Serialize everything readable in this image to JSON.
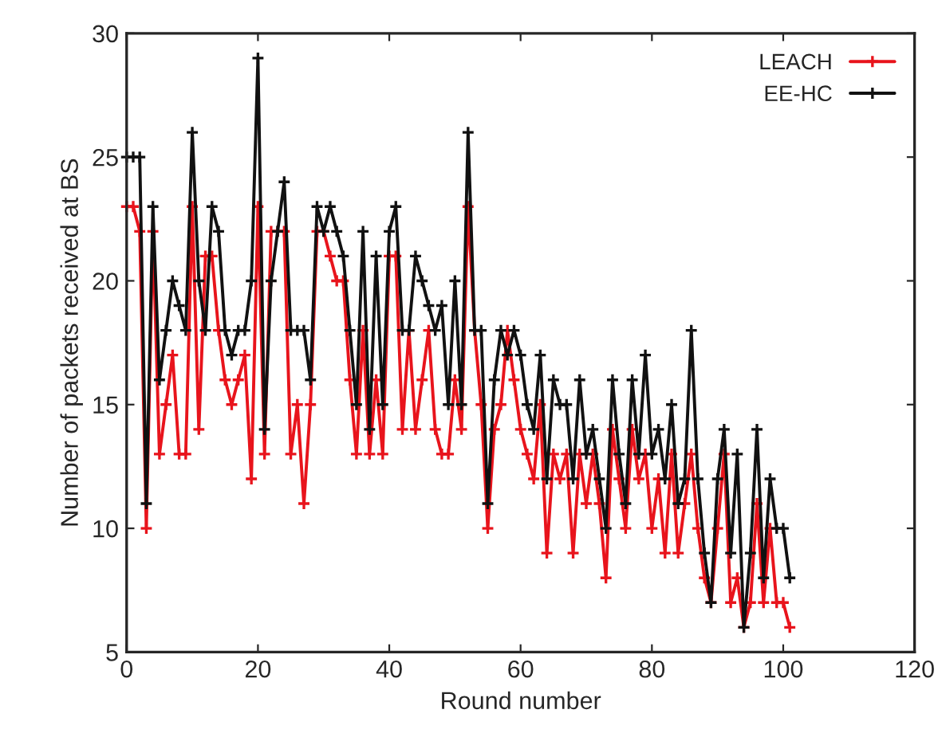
{
  "chart_data": {
    "type": "line",
    "xlabel": "Round number",
    "ylabel": "Number of packets received at BS",
    "x": [
      0,
      1,
      2,
      3,
      4,
      5,
      6,
      7,
      8,
      9,
      10,
      11,
      12,
      13,
      14,
      15,
      16,
      17,
      18,
      19,
      20,
      21,
      22,
      23,
      24,
      25,
      26,
      27,
      28,
      29,
      30,
      31,
      32,
      33,
      34,
      35,
      36,
      37,
      38,
      39,
      40,
      41,
      42,
      43,
      44,
      45,
      46,
      47,
      48,
      49,
      50,
      51,
      52,
      53,
      54,
      55,
      56,
      57,
      58,
      59,
      60,
      61,
      62,
      63,
      64,
      65,
      66,
      67,
      68,
      69,
      70,
      71,
      72,
      73,
      74,
      75,
      76,
      77,
      78,
      79,
      80,
      81,
      82,
      83,
      84,
      85,
      86,
      87,
      88,
      89,
      90,
      91,
      92,
      93,
      94,
      95,
      96,
      97,
      98,
      99,
      100,
      101
    ],
    "series": [
      {
        "name": "LEACH",
        "color": "#e8141c",
        "values": [
          23,
          23,
          22,
          10,
          22,
          13,
          15,
          17,
          13,
          13,
          23,
          14,
          21,
          21,
          18,
          16,
          15,
          16,
          17,
          12,
          23,
          13,
          22,
          22,
          22,
          13,
          15,
          11,
          15,
          22,
          22,
          21,
          20,
          20,
          16,
          13,
          18,
          13,
          16,
          13,
          21,
          21,
          14,
          18,
          14,
          16,
          18,
          14,
          13,
          13,
          16,
          14,
          23,
          18,
          15,
          10,
          14,
          15,
          18,
          16,
          14,
          13,
          12,
          15,
          9,
          13,
          12,
          13,
          9,
          13,
          11,
          13,
          11,
          8,
          14,
          12,
          10,
          14,
          12,
          13,
          10,
          12,
          9,
          13,
          9,
          11,
          13,
          10,
          8,
          7,
          10,
          13,
          7,
          8,
          6,
          7,
          11,
          7,
          10,
          7,
          7,
          6
        ]
      },
      {
        "name": "EE-HC",
        "color": "#111111",
        "values": [
          25,
          25,
          25,
          11,
          23,
          16,
          18,
          20,
          19,
          18,
          26,
          20,
          18,
          23,
          22,
          18,
          17,
          18,
          18,
          20,
          29,
          14,
          20,
          22,
          24,
          18,
          18,
          18,
          16,
          23,
          22,
          23,
          22,
          21,
          18,
          15,
          22,
          14,
          21,
          15,
          22,
          23,
          18,
          18,
          21,
          20,
          19,
          18,
          19,
          15,
          20,
          15,
          26,
          18,
          18,
          11,
          16,
          18,
          17,
          18,
          17,
          15,
          14,
          17,
          12,
          16,
          15,
          15,
          12,
          16,
          13,
          14,
          12,
          10,
          16,
          13,
          11,
          16,
          13,
          17,
          13,
          14,
          12,
          15,
          11,
          12,
          18,
          12,
          9,
          7,
          12,
          14,
          9,
          13,
          6,
          9,
          14,
          8,
          12,
          10,
          10,
          8
        ]
      }
    ],
    "xlim": [
      0,
      120
    ],
    "xticks": [
      0,
      20,
      40,
      60,
      80,
      100,
      120
    ],
    "ylim": [
      5,
      30
    ],
    "yticks": [
      5,
      10,
      15,
      20,
      25,
      30
    ],
    "grid": false,
    "legend": "top right",
    "marker": "cross",
    "line_style": "solid"
  }
}
